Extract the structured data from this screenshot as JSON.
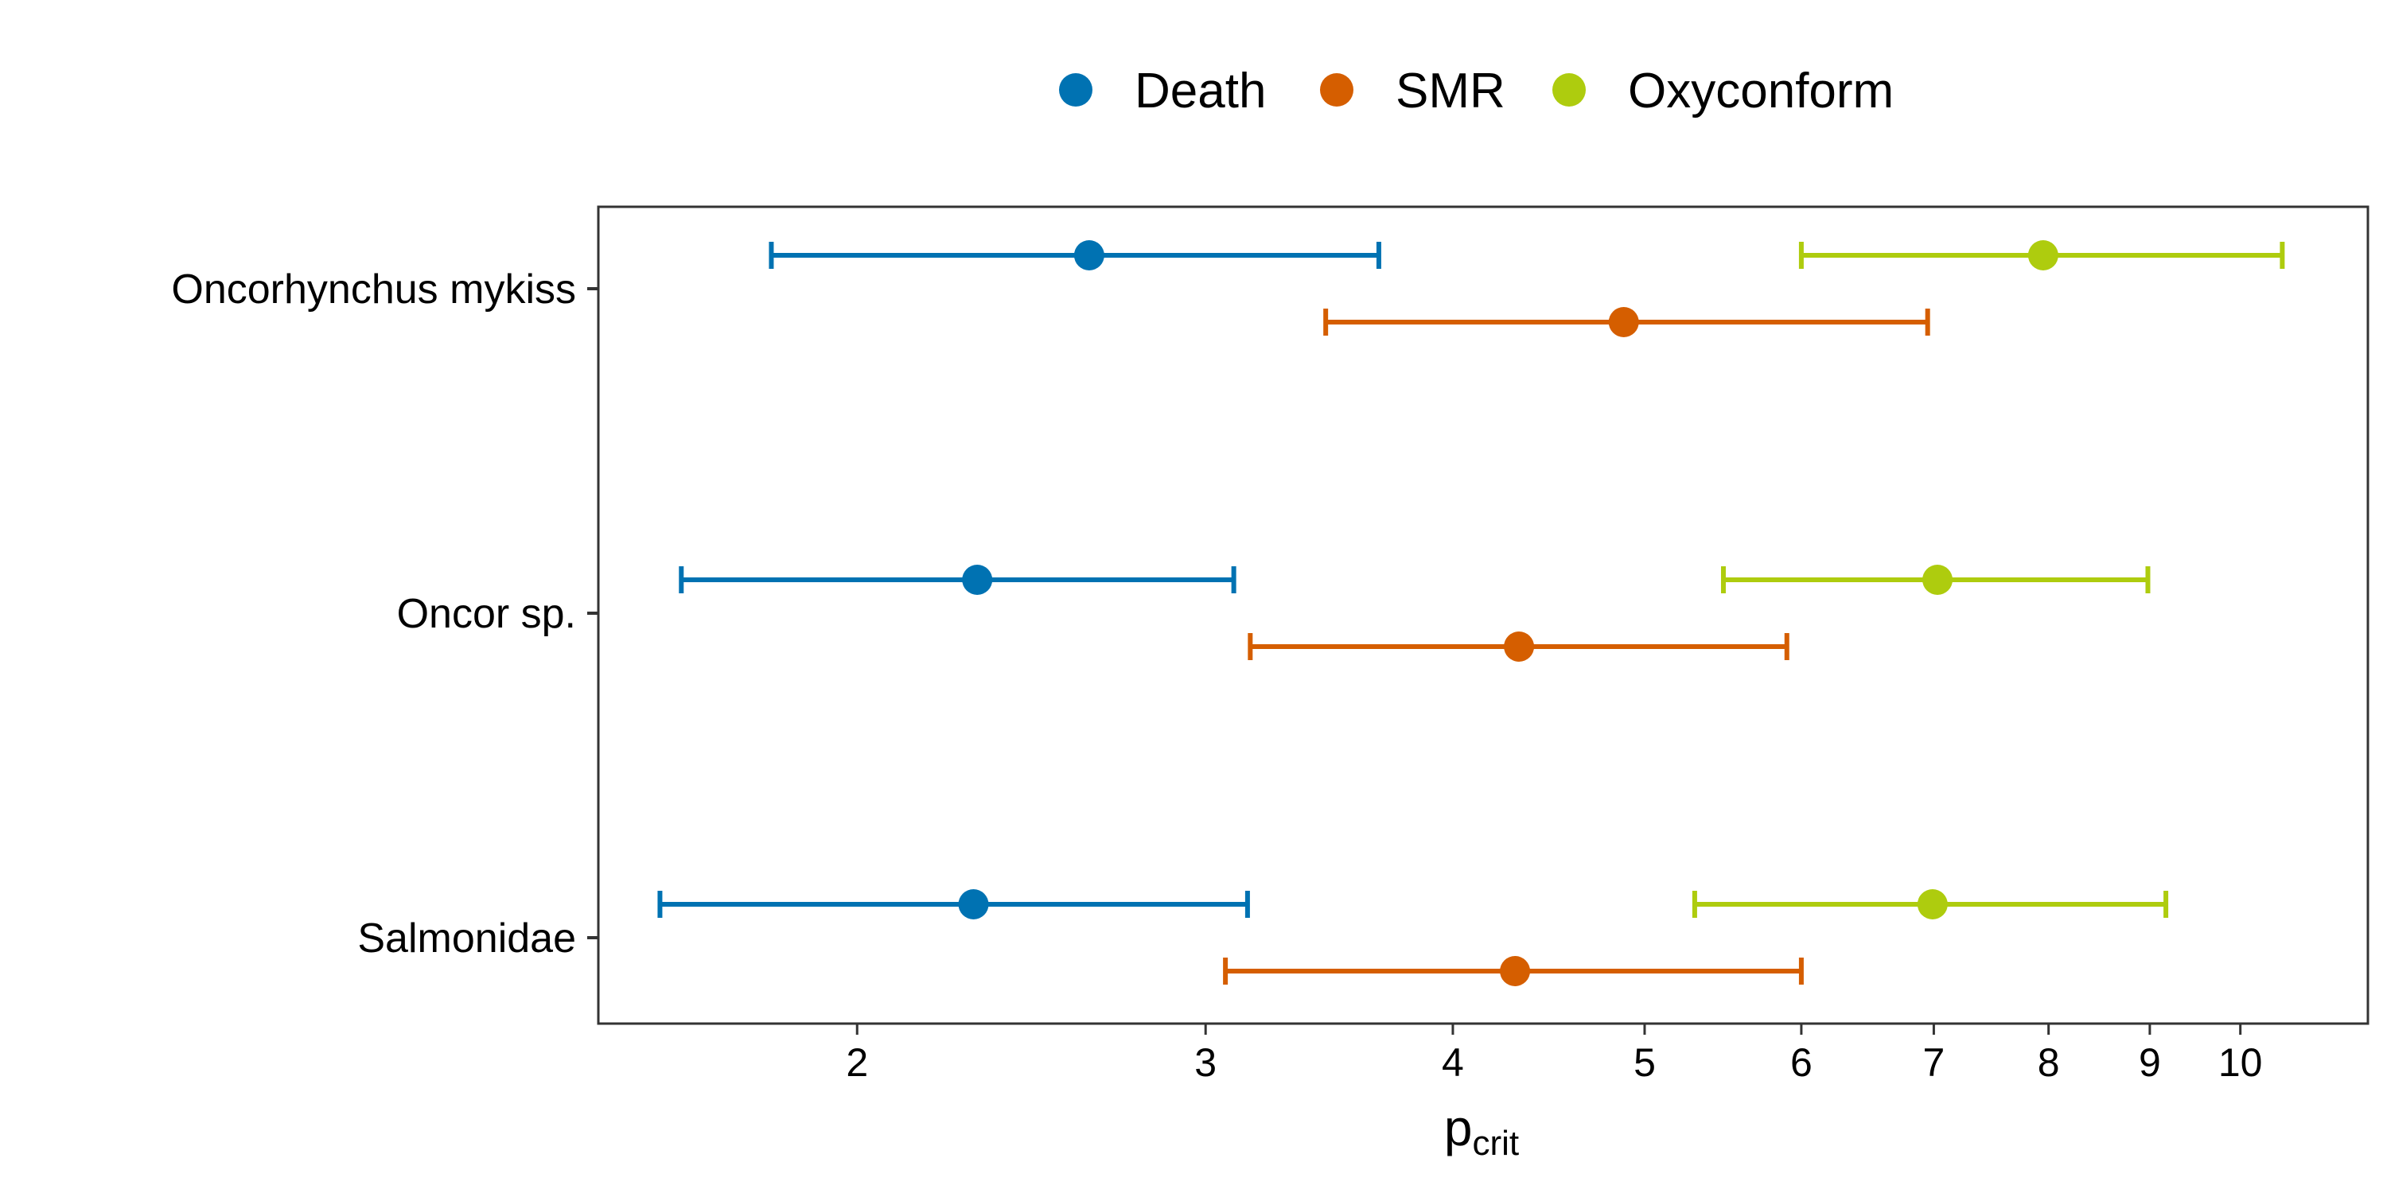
{
  "chart_data": {
    "type": "scatter",
    "x_scale": "log",
    "xlim": [
      1.48,
      11.6
    ],
    "x_ticks": [
      2,
      3,
      4,
      5,
      6,
      7,
      8,
      9,
      10
    ],
    "x_tick_labels": [
      "2",
      "3",
      "4",
      "5",
      "6",
      "7",
      "8",
      "9",
      "10"
    ],
    "xlabel_main": "p",
    "xlabel_sub": "crit",
    "categories": [
      "Oncorhynchus mykiss",
      "Oncor sp.",
      "Salmonidae"
    ],
    "legend": {
      "placement": "top"
    },
    "grid": false,
    "series": [
      {
        "name": "Death",
        "color": "#0072B2",
        "estimates": [
          2.62,
          2.3,
          2.29
        ],
        "lower": [
          1.81,
          1.63,
          1.59
        ],
        "upper": [
          3.67,
          3.1,
          3.15
        ]
      },
      {
        "name": "SMR",
        "color": "#D55E00",
        "estimates": [
          4.88,
          4.32,
          4.3
        ],
        "lower": [
          3.45,
          3.16,
          3.07
        ],
        "upper": [
          6.95,
          5.9,
          6.0
        ]
      },
      {
        "name": "Oxyconform",
        "color": "#AECC0E",
        "estimates": [
          7.95,
          7.03,
          6.99
        ],
        "lower": [
          6.0,
          5.48,
          5.3
        ],
        "upper": [
          10.5,
          8.98,
          9.17
        ]
      }
    ]
  }
}
